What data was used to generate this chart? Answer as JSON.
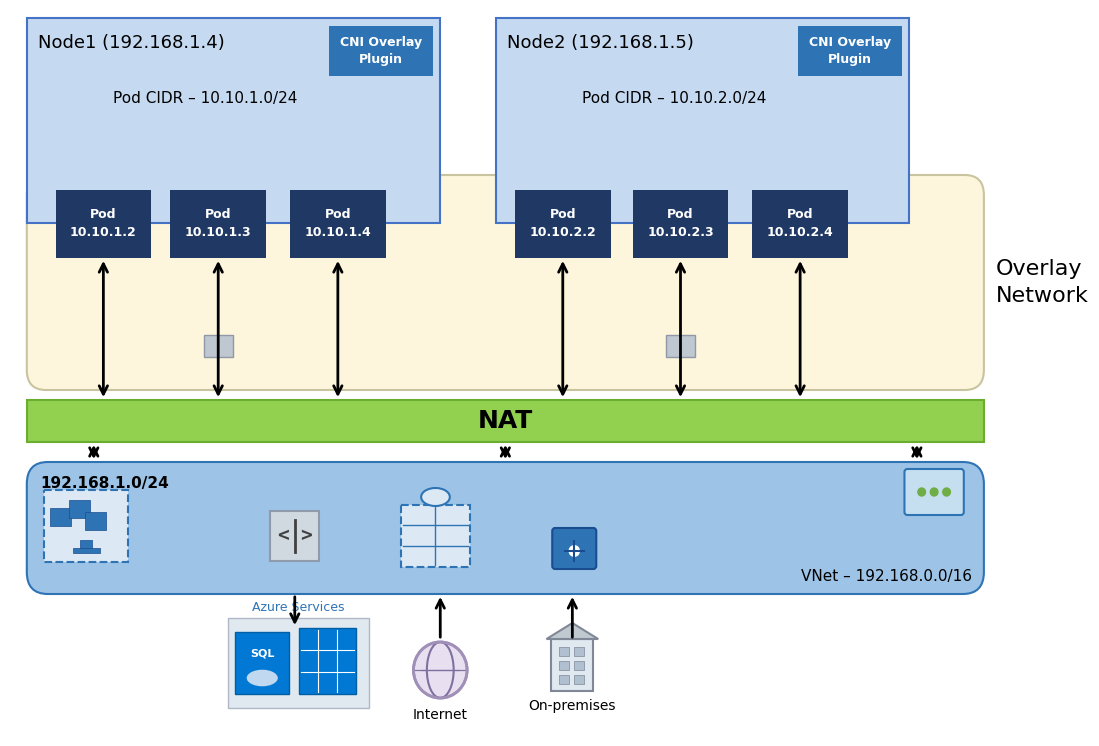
{
  "bg_color": "#ffffff",
  "node1_label": "Node1 (192.168.1.4)",
  "node2_label": "Node2 (192.168.1.5)",
  "cni_label": "CNI Overlay\nPlugin",
  "pod_cidr1": "Pod CIDR – 10.10.1.0/24",
  "pod_cidr2": "Pod CIDR – 10.10.2.0/24",
  "node1_pods": [
    "Pod\n10.10.1.2",
    "Pod\n10.10.1.3",
    "Pod\n10.10.1.4"
  ],
  "node2_pods": [
    "Pod\n10.10.2.2",
    "Pod\n10.10.2.3",
    "Pod\n10.10.2.4"
  ],
  "overlay_label": "Overlay\nNetwork",
  "nat_label": "NAT",
  "vnet_label": "192.168.1.0/24",
  "vnet_range": "VNet – 192.168.0.0/16",
  "azure_services_label": "Azure Services",
  "internet_label": "Internet",
  "on_premises_label": "On-premises",
  "node_bg_color": "#c5d9f1",
  "node_border_color": "#4472c4",
  "cni_btn_color": "#2e74b5",
  "pod_color": "#1f3864",
  "nat_color": "#92d050",
  "vnet_color": "#9dc3e6",
  "vnet_border_color": "#2e74b5"
}
